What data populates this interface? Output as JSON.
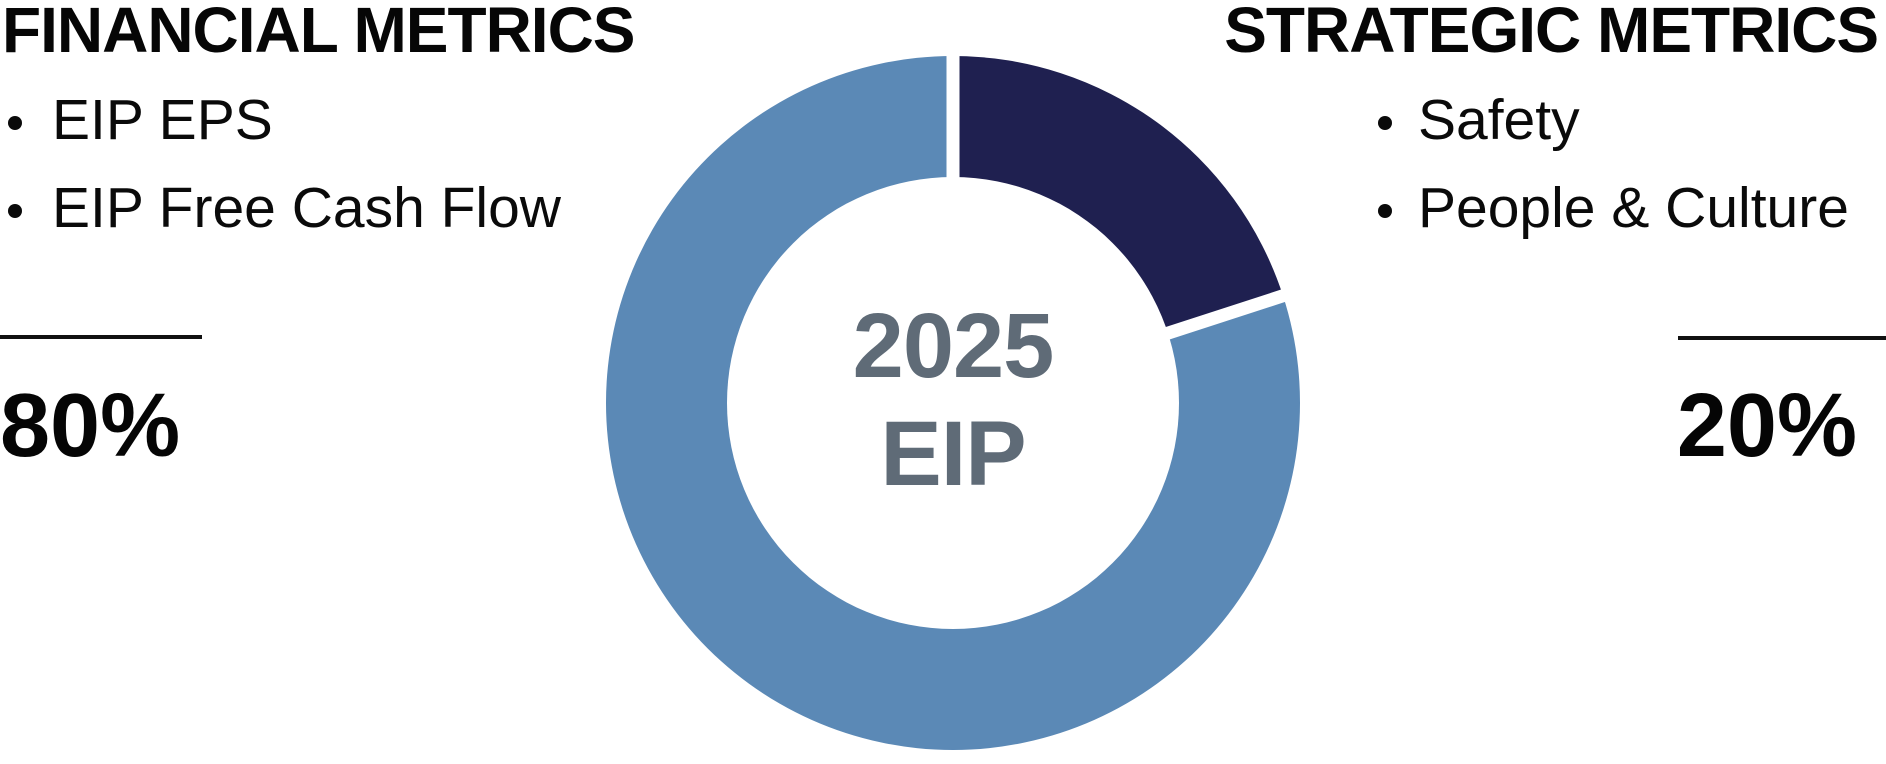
{
  "left_panel": {
    "title": "FINANCIAL METRICS",
    "items": [
      "EIP EPS",
      "EIP Free Cash Flow"
    ],
    "weight": "80%"
  },
  "right_panel": {
    "title": "STRATEGIC METRICS",
    "items": [
      "Safety",
      "People & Culture"
    ],
    "weight": "20%"
  },
  "chart_data": {
    "type": "pie",
    "donut": true,
    "title": "2025 EIP",
    "slices": [
      {
        "label": "Strategic Metrics",
        "value": 20,
        "color": "#1f2050"
      },
      {
        "label": "Financial Metrics",
        "value": 80,
        "color": "#5b89b6"
      }
    ],
    "start_angle_deg": 0,
    "direction": "clockwise",
    "inner_radius_ratio": 0.65,
    "separator_color": "#ffffff",
    "legend_position": "none",
    "center_label": [
      "2025",
      "EIP"
    ],
    "center_label_color": "#5f6b77"
  }
}
